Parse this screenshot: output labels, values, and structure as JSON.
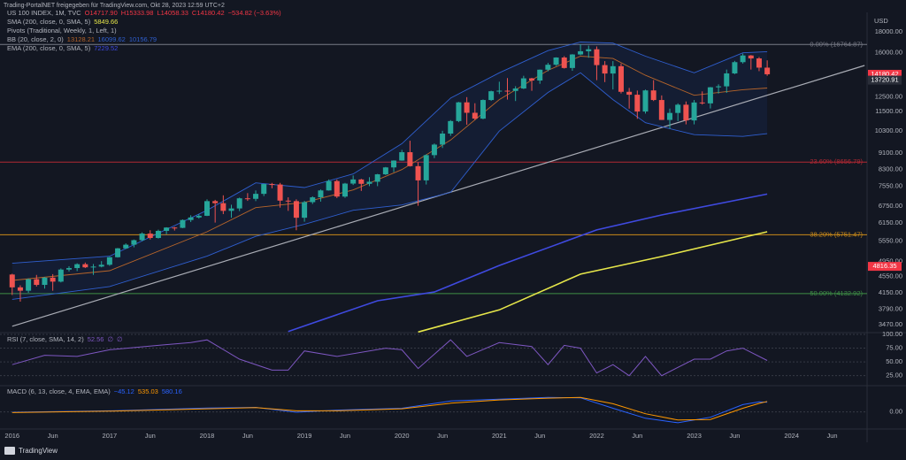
{
  "header": {
    "shared_by": "Trading-PortalNET freigegeben für TradingView.com, Okt 28, 2023 12:59 UTC+2",
    "brand": "TradingView"
  },
  "chart_data": {
    "type": "candlestick",
    "title": "US 100 INDEX, 1M, TVC",
    "ohlc_labels": [
      "O14717.90",
      "H15333.98",
      "L14058.33",
      "C14180.42",
      "−534.82 (−3.63%)"
    ],
    "up_color": "#26a69a",
    "down_color": "#ef5350",
    "y_unit": "USD",
    "log_scale": true,
    "grid": false,
    "xlim": [
      -1.5,
      105.3
    ],
    "xticks": [
      {
        "value": 0,
        "label": "2016"
      },
      {
        "value": 5,
        "label": "Jun"
      },
      {
        "value": 12,
        "label": "2017"
      },
      {
        "value": 17,
        "label": "Jun"
      },
      {
        "value": 24,
        "label": "2018"
      },
      {
        "value": 29,
        "label": "Jun"
      },
      {
        "value": 36,
        "label": "2019"
      },
      {
        "value": 41,
        "label": "Jun"
      },
      {
        "value": 48,
        "label": "2020"
      },
      {
        "value": 53,
        "label": "Jun"
      },
      {
        "value": 60,
        "label": "2021"
      },
      {
        "value": 65,
        "label": "Jun"
      },
      {
        "value": 72,
        "label": "2022"
      },
      {
        "value": 77,
        "label": "Jun"
      },
      {
        "value": 84,
        "label": "2023"
      },
      {
        "value": 89,
        "label": "Jun"
      },
      {
        "value": 96,
        "label": "2024"
      },
      {
        "value": 101,
        "label": "Jun"
      }
    ],
    "ylim": [
      3335,
      18730
    ],
    "yticks": [
      {
        "value": 18000,
        "label": "18000.00"
      },
      {
        "value": 16000,
        "label": "16000.00"
      },
      {
        "value": 12500,
        "label": "12500.00"
      },
      {
        "value": 11500,
        "label": "11500.00"
      },
      {
        "value": 10300,
        "label": "10300.00"
      },
      {
        "value": 9100,
        "label": "9100.00"
      },
      {
        "value": 8300,
        "label": "8300.00"
      },
      {
        "value": 7550,
        "label": "7550.00"
      },
      {
        "value": 6750,
        "label": "6750.00"
      },
      {
        "value": 6150,
        "label": "6150.00"
      },
      {
        "value": 5550,
        "label": "5550.00"
      },
      {
        "value": 4950,
        "label": "4950.00"
      },
      {
        "value": 4550,
        "label": "4550.00"
      },
      {
        "value": 4150,
        "label": "4150.00"
      },
      {
        "value": 3790,
        "label": "3790.00"
      },
      {
        "value": 3470,
        "label": "3470.00"
      }
    ],
    "candles": [
      [
        4600,
        4620,
        4100,
        4280
      ],
      [
        4280,
        4330,
        3950,
        4200
      ],
      [
        4200,
        4500,
        4150,
        4480
      ],
      [
        4480,
        4590,
        4300,
        4340
      ],
      [
        4340,
        4540,
        4250,
        4520
      ],
      [
        4520,
        4610,
        4200,
        4420
      ],
      [
        4420,
        4760,
        4400,
        4730
      ],
      [
        4730,
        4820,
        4680,
        4770
      ],
      [
        4770,
        4900,
        4690,
        4875
      ],
      [
        4875,
        4920,
        4770,
        4790
      ],
      [
        4790,
        4880,
        4590,
        4810
      ],
      [
        4810,
        4960,
        4790,
        4860
      ],
      [
        4860,
        5080,
        4830,
        5070
      ],
      [
        5070,
        5340,
        5060,
        5330
      ],
      [
        5330,
        5480,
        5310,
        5440
      ],
      [
        5440,
        5600,
        5360,
        5580
      ],
      [
        5580,
        5830,
        5550,
        5790
      ],
      [
        5790,
        5900,
        5600,
        5650
      ],
      [
        5650,
        5920,
        5630,
        5880
      ],
      [
        5880,
        6000,
        5770,
        5990
      ],
      [
        5990,
        6010,
        5890,
        5980
      ],
      [
        5980,
        6270,
        5970,
        6250
      ],
      [
        6250,
        6420,
        6180,
        6340
      ],
      [
        6340,
        6460,
        6300,
        6400
      ],
      [
        6400,
        7020,
        6390,
        6950
      ],
      [
        6950,
        7000,
        6160,
        6870
      ],
      [
        6870,
        7180,
        6460,
        6580
      ],
      [
        6580,
        6810,
        6330,
        6670
      ],
      [
        6670,
        7090,
        6570,
        7060
      ],
      [
        7060,
        7270,
        6960,
        7040
      ],
      [
        7040,
        7380,
        6950,
        7240
      ],
      [
        7240,
        7660,
        7150,
        7650
      ],
      [
        7650,
        7700,
        7470,
        7630
      ],
      [
        7630,
        7700,
        6700,
        6970
      ],
      [
        6970,
        7100,
        6580,
        6950
      ],
      [
        6950,
        7020,
        5900,
        6330
      ],
      [
        6330,
        6960,
        6190,
        6910
      ],
      [
        6910,
        7140,
        6840,
        7100
      ],
      [
        7100,
        7420,
        6930,
        7380
      ],
      [
        7380,
        7850,
        7370,
        7780
      ],
      [
        7780,
        7850,
        7070,
        7130
      ],
      [
        7130,
        7700,
        7080,
        7670
      ],
      [
        7670,
        8030,
        7610,
        7850
      ],
      [
        7850,
        7880,
        7360,
        7660
      ],
      [
        7660,
        7950,
        7560,
        7750
      ],
      [
        7750,
        8100,
        7560,
        8080
      ],
      [
        8080,
        8420,
        8050,
        8400
      ],
      [
        8400,
        8740,
        8180,
        8730
      ],
      [
        8730,
        9270,
        8720,
        9150
      ],
      [
        9150,
        9760,
        8440,
        8460
      ],
      [
        8460,
        8650,
        6770,
        7810
      ],
      [
        7810,
        9040,
        7630,
        9000
      ],
      [
        9000,
        9610,
        8850,
        9550
      ],
      [
        9550,
        10320,
        9370,
        10160
      ],
      [
        10160,
        10960,
        10030,
        10900
      ],
      [
        10900,
        12140,
        10830,
        12110
      ],
      [
        12110,
        12470,
        10680,
        11420
      ],
      [
        11420,
        12050,
        10960,
        11050
      ],
      [
        11050,
        12310,
        11010,
        12270
      ],
      [
        12270,
        12930,
        12210,
        12890
      ],
      [
        12890,
        13600,
        12690,
        12930
      ],
      [
        12930,
        13880,
        12300,
        12910
      ],
      [
        12910,
        13260,
        12200,
        13090
      ],
      [
        13090,
        14060,
        13050,
        13860
      ],
      [
        13860,
        13900,
        12920,
        13690
      ],
      [
        13690,
        14570,
        13440,
        14550
      ],
      [
        14550,
        15120,
        14420,
        14960
      ],
      [
        14960,
        15600,
        14860,
        15580
      ],
      [
        15580,
        15700,
        14640,
        14690
      ],
      [
        14690,
        15880,
        14460,
        15850
      ],
      [
        15850,
        16770,
        15780,
        16140
      ],
      [
        16140,
        16660,
        15560,
        16320
      ],
      [
        16320,
        16580,
        13720,
        14930
      ],
      [
        14930,
        15270,
        13570,
        14240
      ],
      [
        14240,
        15270,
        13020,
        14840
      ],
      [
        14840,
        15060,
        12730,
        12850
      ],
      [
        12850,
        13130,
        11690,
        12640
      ],
      [
        12640,
        12940,
        11040,
        11500
      ],
      [
        11500,
        13010,
        11370,
        12950
      ],
      [
        12950,
        13720,
        12200,
        12270
      ],
      [
        12270,
        12590,
        10970,
        10970
      ],
      [
        10970,
        11690,
        10440,
        11410
      ],
      [
        11410,
        12040,
        10900,
        11950
      ],
      [
        11950,
        12170,
        10700,
        10940
      ],
      [
        10940,
        12270,
        10700,
        12100
      ],
      [
        12100,
        12880,
        11960,
        12040
      ],
      [
        12040,
        13200,
        11700,
        13180
      ],
      [
        13180,
        13400,
        12720,
        13250
      ],
      [
        13250,
        14560,
        12770,
        14250
      ],
      [
        14250,
        15290,
        14190,
        15180
      ],
      [
        15180,
        15930,
        15060,
        15760
      ],
      [
        15760,
        15800,
        14560,
        15500
      ],
      [
        15500,
        15620,
        14430,
        14720
      ],
      [
        14717.9,
        15333.98,
        14058.33,
        14180.42
      ]
    ],
    "overlays": [
      {
        "name": "SMA (200, close, 0, SMA, 5)",
        "value_labels": [
          "5849.66"
        ],
        "lines": [
          {
            "color": "#e6e64a",
            "x": [
              50,
              60,
              70,
              80,
              93
            ],
            "values": [
              3330,
              3770,
              4610,
              5090,
              5849.66
            ]
          }
        ]
      },
      {
        "name": "Pivots (Traditional, Weekly, 1, Left, 1)",
        "value_labels": [],
        "lines": []
      },
      {
        "name": "BB (20, close, 2, 0)",
        "value_labels": [
          "13128.21",
          "16099.62",
          "10156.79"
        ],
        "lines": [
          {
            "color": "#b7652a",
            "x": [
              0,
              12,
              24,
              30,
              36,
              42,
              48,
              54,
              60,
              66,
              70,
              74,
              78,
              84,
              90,
              93
            ],
            "values": [
              4450,
              4700,
              5850,
              6700,
              6900,
              7400,
              8300,
              9800,
              12300,
              14500,
              15700,
              15500,
              14100,
              12600,
              13000,
              13128.21
            ]
          },
          {
            "color": "#2f5fd0",
            "x": [
              0,
              12,
              24,
              30,
              36,
              42,
              48,
              54,
              60,
              66,
              70,
              74,
              78,
              84,
              90,
              93
            ],
            "values": [
              4900,
              5100,
              6600,
              7700,
              7500,
              8100,
              9600,
              12400,
              14300,
              16200,
              17000,
              16900,
              15700,
              14300,
              16000,
              16099.62
            ]
          },
          {
            "color": "#2f5fd0",
            "x": [
              0,
              12,
              24,
              30,
              36,
              42,
              48,
              54,
              60,
              66,
              70,
              74,
              78,
              84,
              90,
              93
            ],
            "values": [
              4000,
              4300,
              5100,
              5700,
              6100,
              6600,
              6800,
              7300,
              10300,
              12800,
              14300,
              12300,
              10800,
              10100,
              10000,
              10156.79
            ]
          }
        ]
      },
      {
        "name": "EMA (200, close, 0, SMA, 5)",
        "value_labels": [
          "7229.52"
        ],
        "lines": [
          {
            "color": "#3f4ae0",
            "x": [
              34,
              45,
              52,
              60,
              72,
              80,
              93
            ],
            "values": [
              3340,
              3970,
              4170,
              4840,
              5910,
              6430,
              7229.52
            ]
          }
        ]
      }
    ],
    "trendline": {
      "color": "#a9acb5",
      "x": [
        0,
        105
      ],
      "values": [
        3440,
        14900
      ]
    },
    "levels": [
      {
        "label": "0.00% (16764.87)",
        "value": 16764.87,
        "color": "#787b86"
      },
      {
        "label": "23.60% (8656.79)",
        "value": 8656.79,
        "color": "#b22833"
      },
      {
        "label": "38.20% (5751.47)",
        "value": 5751.47,
        "color": "#c98a1a"
      },
      {
        "label": "50.00% (4132.92)",
        "value": 4132.92,
        "color": "#3f8f46"
      }
    ],
    "price_labels": [
      {
        "value": 14180.42,
        "label": "14180.42",
        "color": "#f23645"
      },
      {
        "value": 13720.91,
        "label": "13720.91",
        "color": "#2a2e39"
      },
      {
        "value": 4816.35,
        "label": "4816.35",
        "color": "#f23645"
      }
    ],
    "indicators": [
      {
        "title": "RSI (7, close, SMA, 14, 2)",
        "value_labels": [
          "52.56",
          "∅",
          "∅"
        ],
        "ylim": [
          10,
          100
        ],
        "yticks": [
          {
            "value": 100,
            "label": "100.00"
          },
          {
            "value": 75,
            "label": "75.00"
          },
          {
            "value": 50,
            "label": "50.00"
          },
          {
            "value": 25,
            "label": "25.00"
          }
        ],
        "series": [
          {
            "color": "#7e57c2",
            "x": [
              0,
              4,
              8,
              12,
              18,
              22,
              24,
              28,
              32,
              34,
              36,
              40,
              46,
              48,
              50,
              54,
              56,
              60,
              64,
              66,
              68,
              70,
              72,
              74,
              76,
              78,
              80,
              82,
              84,
              86,
              88,
              90,
              93
            ],
            "values": [
              45,
              62,
              60,
              72,
              80,
              85,
              90,
              55,
              35,
              35,
              70,
              60,
              75,
              72,
              38,
              90,
              60,
              85,
              78,
              45,
              80,
              75,
              30,
              45,
              25,
              60,
              25,
              40,
              55,
              55,
              70,
              75,
              52.56
            ]
          }
        ]
      },
      {
        "title": "MACD (6, 13, close, 4, EMA, EMA)",
        "value_labels": [
          "−45.12",
          "535.03",
          "580.16"
        ],
        "ylim": [
          -900,
          1400
        ],
        "yticks": [
          {
            "value": 0,
            "label": "0.00"
          }
        ],
        "series": [
          {
            "color": "#2962ff",
            "x": [
              0,
              12,
              24,
              30,
              35,
              40,
              48,
              54,
              60,
              66,
              70,
              74,
              78,
              82,
              86,
              90,
              92,
              93
            ],
            "values": [
              -20,
              60,
              210,
              250,
              -20,
              100,
              200,
              600,
              700,
              800,
              780,
              200,
              -350,
              -600,
              -300,
              400,
              560,
              535.03
            ]
          },
          {
            "color": "#ff9800",
            "x": [
              0,
              12,
              24,
              30,
              35,
              40,
              48,
              54,
              60,
              66,
              70,
              74,
              78,
              82,
              86,
              90,
              92,
              93
            ],
            "values": [
              -40,
              40,
              170,
              240,
              60,
              60,
              170,
              480,
              660,
              760,
              800,
              450,
              -100,
              -450,
              -420,
              200,
              470,
              580.16
            ]
          }
        ]
      }
    ]
  }
}
